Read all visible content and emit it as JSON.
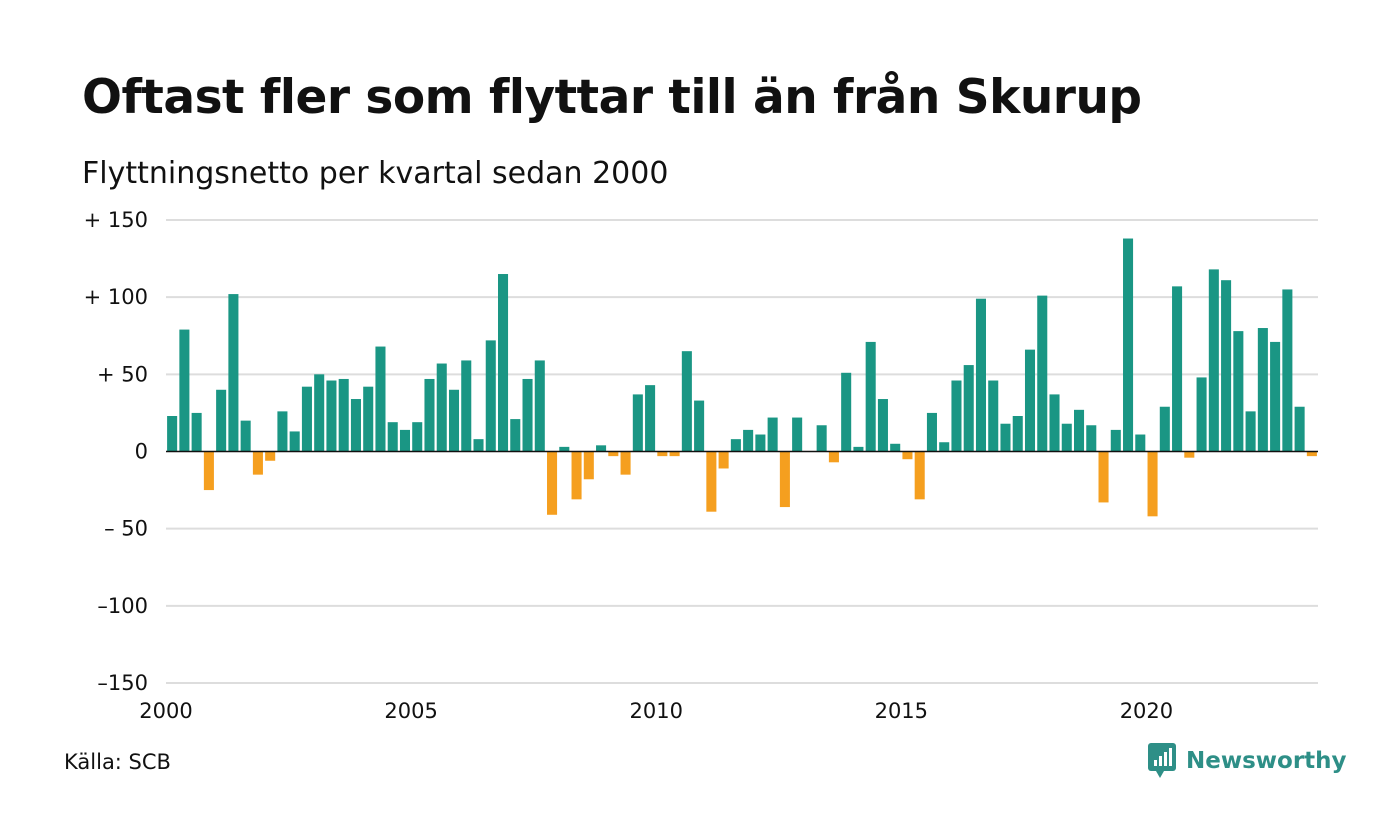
{
  "header": {
    "title": "Oftast fler som flyttar till än från Skurup",
    "subtitle": "Flyttningsnetto per kvartal sedan 2000"
  },
  "footer": {
    "source": "Källa: SCB",
    "brand": "Newsworthy",
    "brand_icon": "newsworthy-logo-icon"
  },
  "colors": {
    "positive": "#1a9684",
    "negative": "#f59f1f",
    "grid": "#dddddd",
    "brand": "#2e8f87"
  },
  "chart_data": {
    "type": "bar",
    "title": "Oftast fler som flyttar till än från Skurup",
    "subtitle": "Flyttningsnetto per kvartal sedan 2000",
    "x_start": "2000 Q1",
    "frequency": "quarterly",
    "ylim": [
      -150,
      150
    ],
    "y_ticks": [
      150,
      100,
      50,
      0,
      -50,
      -100,
      -150
    ],
    "y_tick_labels": [
      "+ 150",
      "+ 100",
      "+  50",
      "0",
      "– 50",
      "–100",
      "–150"
    ],
    "x_ticks": [
      "2000",
      "2005",
      "2010",
      "2015",
      "2020"
    ],
    "grid": true,
    "series": [
      {
        "values": [
          23,
          79,
          25,
          -25,
          40,
          102,
          20,
          -15,
          -6,
          26,
          13,
          42,
          50,
          46,
          47,
          34,
          42,
          68,
          19,
          14,
          19,
          47,
          57,
          40,
          59,
          8,
          72,
          115,
          21,
          47,
          59,
          -41,
          3,
          -31,
          -18,
          4,
          -3,
          -15,
          37,
          43,
          -3,
          -3,
          65,
          33,
          -39,
          -11,
          8,
          14,
          11,
          22,
          -36,
          22,
          0,
          17,
          -7,
          51,
          3,
          71,
          34,
          5,
          -5,
          -31,
          25,
          6,
          46,
          56,
          99,
          46,
          18,
          23,
          66,
          101,
          37,
          18,
          27,
          17,
          -33,
          14,
          138,
          11,
          -42,
          29,
          107,
          -4,
          48,
          118,
          111,
          78,
          26,
          80,
          71,
          105,
          29,
          -3
        ]
      }
    ]
  }
}
